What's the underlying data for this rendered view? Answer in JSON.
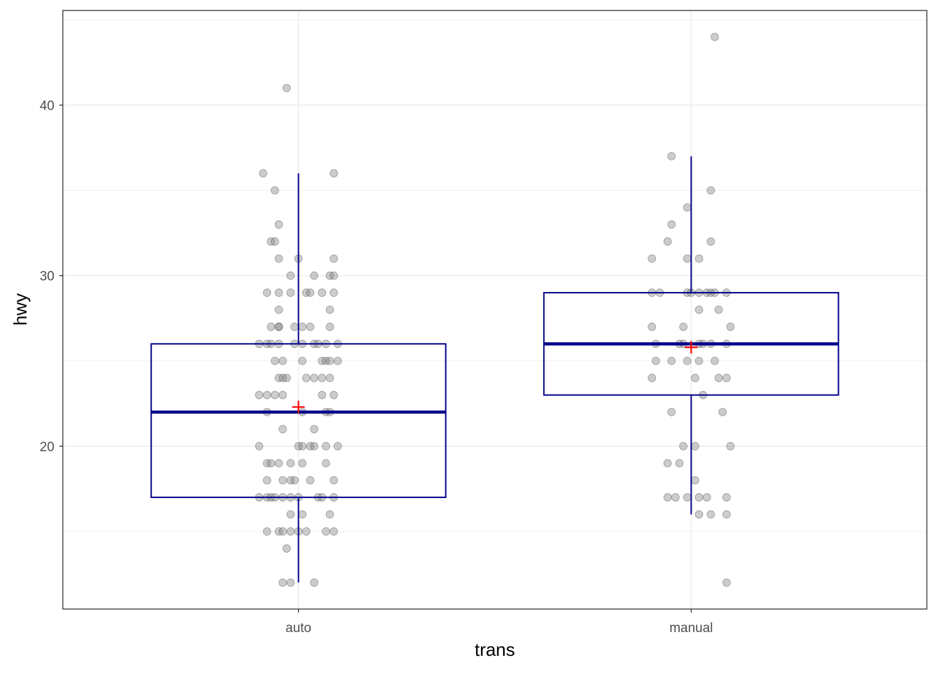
{
  "chart_data": {
    "type": "boxplot",
    "title": "",
    "xlabel": "trans",
    "ylabel": "hwy",
    "categories": [
      "auto",
      "manual"
    ],
    "ylim": [
      10.45,
      45.55
    ],
    "yticks": [
      20,
      30,
      40
    ],
    "yticks_minor": [
      15,
      25,
      35,
      45
    ],
    "grid": true,
    "colors": {
      "box": "#00008B",
      "mean": "#FF0000",
      "point_fill": "#808080",
      "point_stroke": "#333333",
      "grid": "#EBEBEB",
      "axis_text": "#4D4D4D"
    },
    "boxes": [
      {
        "category": "auto",
        "q1": 17,
        "median": 22,
        "q3": 26,
        "whisker_low": 12,
        "whisker_high": 36,
        "mean": 22.3
      },
      {
        "category": "manual",
        "q1": 23,
        "median": 26,
        "q3": 29,
        "whisker_low": 16,
        "whisker_high": 37,
        "mean": 25.8
      }
    ],
    "points": {
      "auto": [
        [
          -0.03,
          41
        ],
        [
          -0.09,
          36
        ],
        [
          0.09,
          36
        ],
        [
          -0.06,
          35
        ],
        [
          -0.05,
          33
        ],
        [
          -0.07,
          32
        ],
        [
          -0.06,
          32
        ],
        [
          -0.05,
          31
        ],
        [
          0.0,
          31
        ],
        [
          0.09,
          31
        ],
        [
          -0.02,
          30
        ],
        [
          0.04,
          30
        ],
        [
          0.08,
          30
        ],
        [
          0.09,
          30
        ],
        [
          -0.08,
          29
        ],
        [
          -0.05,
          29
        ],
        [
          -0.02,
          29
        ],
        [
          0.02,
          29
        ],
        [
          0.03,
          29
        ],
        [
          0.06,
          29
        ],
        [
          0.09,
          29
        ],
        [
          -0.05,
          28
        ],
        [
          0.08,
          28
        ],
        [
          -0.07,
          27
        ],
        [
          -0.05,
          27
        ],
        [
          -0.05,
          27
        ],
        [
          -0.01,
          27
        ],
        [
          0.01,
          27
        ],
        [
          0.03,
          27
        ],
        [
          0.08,
          27
        ],
        [
          -0.1,
          26
        ],
        [
          -0.08,
          26
        ],
        [
          -0.07,
          26
        ],
        [
          -0.05,
          26
        ],
        [
          -0.01,
          26
        ],
        [
          0.01,
          26
        ],
        [
          0.04,
          26
        ],
        [
          0.05,
          26
        ],
        [
          0.07,
          26
        ],
        [
          0.1,
          26
        ],
        [
          -0.06,
          25
        ],
        [
          -0.04,
          25
        ],
        [
          0.01,
          25
        ],
        [
          0.06,
          25
        ],
        [
          0.07,
          25
        ],
        [
          0.08,
          25
        ],
        [
          0.1,
          25
        ],
        [
          -0.05,
          24
        ],
        [
          -0.04,
          24
        ],
        [
          -0.03,
          24
        ],
        [
          0.02,
          24
        ],
        [
          0.04,
          24
        ],
        [
          0.06,
          24
        ],
        [
          0.08,
          24
        ],
        [
          -0.1,
          23
        ],
        [
          -0.08,
          23
        ],
        [
          -0.06,
          23
        ],
        [
          -0.04,
          23
        ],
        [
          0.06,
          23
        ],
        [
          0.09,
          23
        ],
        [
          -0.08,
          22
        ],
        [
          0.01,
          22
        ],
        [
          0.07,
          22
        ],
        [
          0.08,
          22
        ],
        [
          -0.04,
          21
        ],
        [
          0.04,
          21
        ],
        [
          -0.1,
          20
        ],
        [
          0.0,
          20
        ],
        [
          0.01,
          20
        ],
        [
          0.03,
          20
        ],
        [
          0.04,
          20
        ],
        [
          0.07,
          20
        ],
        [
          0.1,
          20
        ],
        [
          -0.08,
          19
        ],
        [
          -0.07,
          19
        ],
        [
          -0.05,
          19
        ],
        [
          -0.02,
          19
        ],
        [
          0.01,
          19
        ],
        [
          0.07,
          19
        ],
        [
          -0.08,
          18
        ],
        [
          -0.04,
          18
        ],
        [
          -0.02,
          18
        ],
        [
          -0.01,
          18
        ],
        [
          0.03,
          18
        ],
        [
          0.09,
          18
        ],
        [
          -0.1,
          17
        ],
        [
          -0.08,
          17
        ],
        [
          -0.07,
          17
        ],
        [
          -0.06,
          17
        ],
        [
          -0.04,
          17
        ],
        [
          -0.02,
          17
        ],
        [
          0.0,
          17
        ],
        [
          0.05,
          17
        ],
        [
          0.06,
          17
        ],
        [
          0.09,
          17
        ],
        [
          -0.02,
          16
        ],
        [
          0.01,
          16
        ],
        [
          0.08,
          16
        ],
        [
          -0.08,
          15
        ],
        [
          -0.05,
          15
        ],
        [
          -0.04,
          15
        ],
        [
          -0.02,
          15
        ],
        [
          0.0,
          15
        ],
        [
          0.02,
          15
        ],
        [
          0.07,
          15
        ],
        [
          0.09,
          15
        ],
        [
          -0.03,
          14
        ],
        [
          -0.04,
          12
        ],
        [
          -0.02,
          12
        ],
        [
          0.04,
          12
        ]
      ],
      "manual": [
        [
          0.06,
          44
        ],
        [
          -0.05,
          37
        ],
        [
          0.05,
          35
        ],
        [
          -0.01,
          34
        ],
        [
          -0.05,
          33
        ],
        [
          -0.06,
          32
        ],
        [
          0.05,
          32
        ],
        [
          -0.1,
          31
        ],
        [
          -0.01,
          31
        ],
        [
          0.02,
          31
        ],
        [
          -0.1,
          29
        ],
        [
          -0.08,
          29
        ],
        [
          -0.01,
          29
        ],
        [
          0.0,
          29
        ],
        [
          0.02,
          29
        ],
        [
          0.04,
          29
        ],
        [
          0.05,
          29
        ],
        [
          0.06,
          29
        ],
        [
          0.09,
          29
        ],
        [
          0.02,
          28
        ],
        [
          0.07,
          28
        ],
        [
          -0.1,
          27
        ],
        [
          -0.02,
          27
        ],
        [
          0.1,
          27
        ],
        [
          -0.09,
          26
        ],
        [
          -0.03,
          26
        ],
        [
          -0.02,
          26
        ],
        [
          0.02,
          26
        ],
        [
          0.03,
          26
        ],
        [
          0.05,
          26
        ],
        [
          0.09,
          26
        ],
        [
          -0.09,
          25
        ],
        [
          -0.05,
          25
        ],
        [
          -0.01,
          25
        ],
        [
          0.02,
          25
        ],
        [
          0.06,
          25
        ],
        [
          -0.1,
          24
        ],
        [
          0.01,
          24
        ],
        [
          0.07,
          24
        ],
        [
          0.09,
          24
        ],
        [
          0.03,
          23
        ],
        [
          -0.05,
          22
        ],
        [
          0.08,
          22
        ],
        [
          -0.02,
          20
        ],
        [
          0.01,
          20
        ],
        [
          0.1,
          20
        ],
        [
          -0.06,
          19
        ],
        [
          -0.03,
          19
        ],
        [
          0.01,
          18
        ],
        [
          -0.06,
          17
        ],
        [
          -0.04,
          17
        ],
        [
          -0.01,
          17
        ],
        [
          0.02,
          17
        ],
        [
          0.04,
          17
        ],
        [
          0.09,
          17
        ],
        [
          0.02,
          16
        ],
        [
          0.05,
          16
        ],
        [
          0.09,
          16
        ],
        [
          0.09,
          12
        ]
      ]
    }
  }
}
